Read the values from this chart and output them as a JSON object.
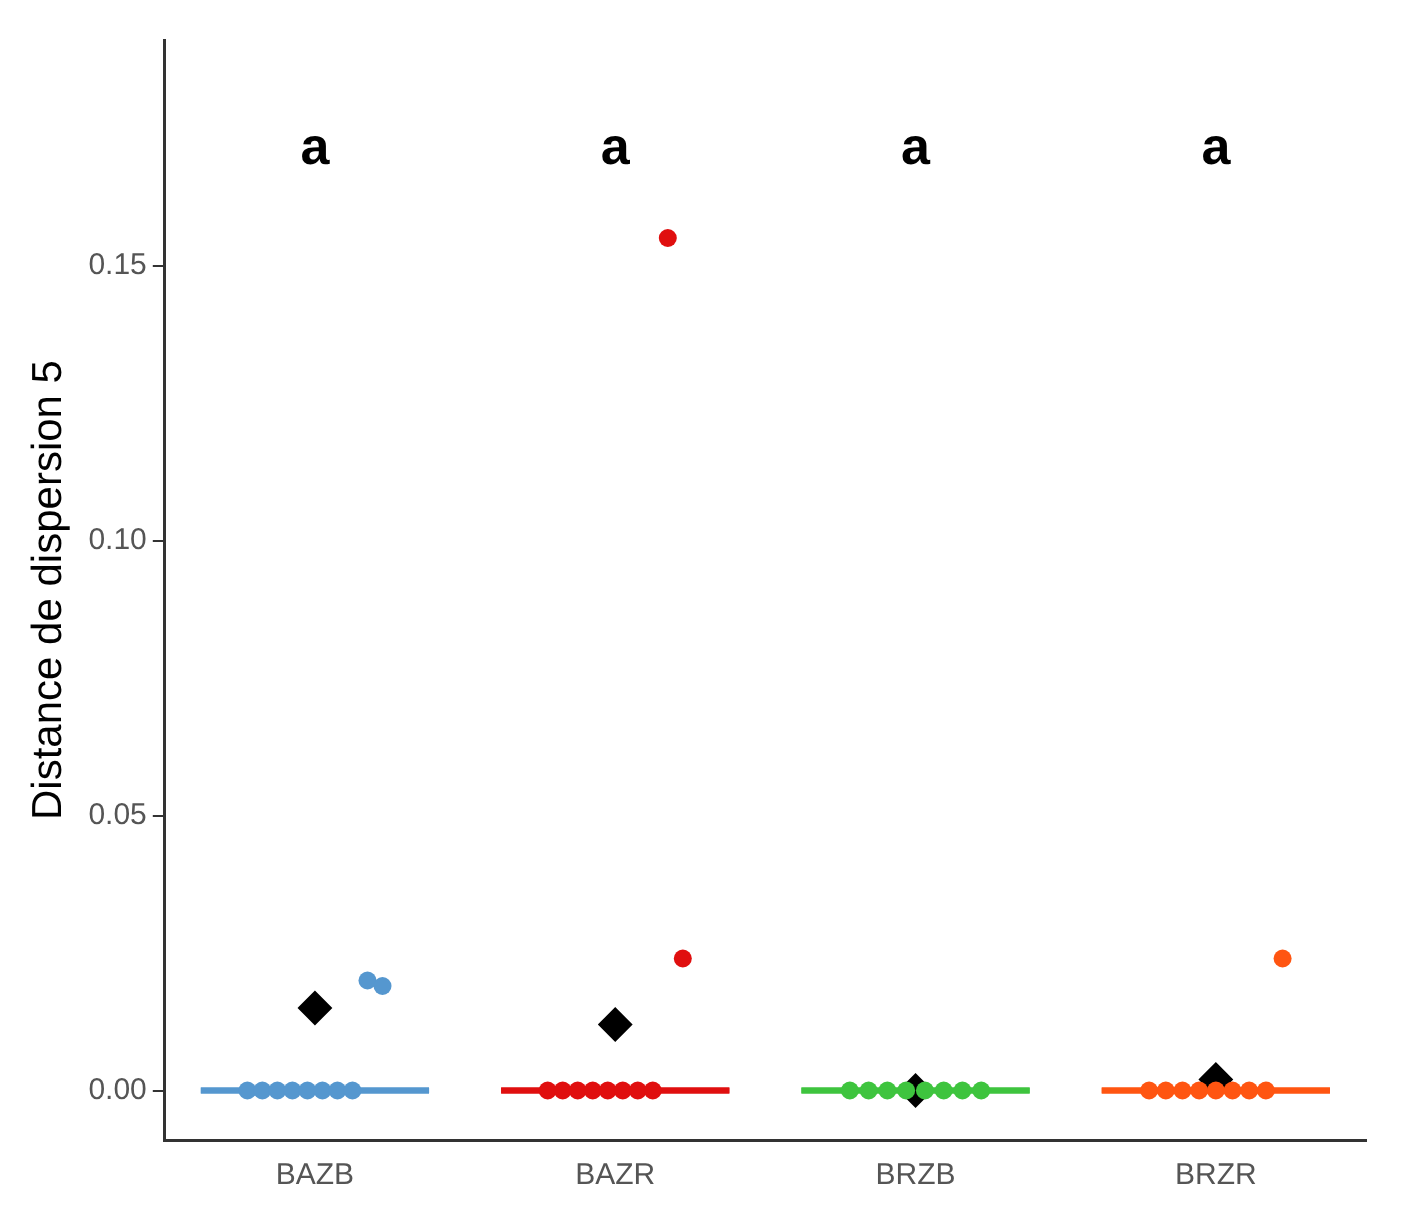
{
  "chart_data": {
    "type": "box",
    "ylabel": "Distance de dispersion 5",
    "categories": [
      "BAZB",
      "BAZR",
      "BRZB",
      "BRZR"
    ],
    "colors": [
      "#5597cf",
      "#e00f0f",
      "#3ec43e",
      "#ff5511"
    ],
    "boxes": [
      {
        "low": 0,
        "q1": 0,
        "median": 0,
        "q3": 0,
        "high": 0,
        "mean": 0.015
      },
      {
        "low": 0,
        "q1": 0,
        "median": 0,
        "q3": 0,
        "high": 0,
        "mean": 0.012
      },
      {
        "low": 0,
        "q1": 0,
        "median": 0,
        "q3": 0,
        "high": 0,
        "mean": 0
      },
      {
        "low": 0,
        "q1": 0,
        "median": 0,
        "q3": 0,
        "high": 0,
        "mean": 0.002
      }
    ],
    "series": [
      {
        "type": "scatter",
        "color": "#5597cf",
        "x": [
          "BAZB",
          "BAZB",
          "BAZB",
          "BAZB",
          "BAZB",
          "BAZB",
          "BAZB",
          "BAZB",
          "BAZB",
          "BAZB"
        ],
        "values": [
          0,
          0,
          0,
          0,
          0,
          0,
          0,
          0,
          0.02,
          0.019
        ]
      },
      {
        "type": "scatter",
        "color": "#e00f0f",
        "x": [
          "BAZR",
          "BAZR",
          "BAZR",
          "BAZR",
          "BAZR",
          "BAZR",
          "BAZR",
          "BAZR",
          "BAZR",
          "BAZR"
        ],
        "values": [
          0,
          0,
          0,
          0,
          0,
          0,
          0,
          0,
          0.155,
          0.024
        ]
      },
      {
        "type": "scatter",
        "color": "#3ec43e",
        "x": [
          "BRZB",
          "BRZB",
          "BRZB",
          "BRZB",
          "BRZB",
          "BRZB",
          "BRZB",
          "BRZB"
        ],
        "values": [
          0,
          0,
          0,
          0,
          0,
          0,
          0,
          0
        ]
      },
      {
        "type": "scatter",
        "color": "#ff5511",
        "x": [
          "BRZR",
          "BRZR",
          "BRZR",
          "BRZR",
          "BRZR",
          "BRZR",
          "BRZR",
          "BRZR",
          "BRZR"
        ],
        "values": [
          0,
          0,
          0,
          0,
          0,
          0,
          0,
          0,
          0.024
        ]
      }
    ],
    "ylim": [
      -0.009,
      0.191
    ],
    "yticks": [
      {
        "value": 0,
        "label": "0.00"
      },
      {
        "value": 0.05,
        "label": "0.05"
      },
      {
        "value": 0.1,
        "label": "0.10"
      },
      {
        "value": 0.15,
        "label": "0.15"
      }
    ],
    "annotations": [
      "a",
      "a",
      "a",
      "a"
    ],
    "grid": false,
    "legend": false,
    "marker": "circle"
  }
}
